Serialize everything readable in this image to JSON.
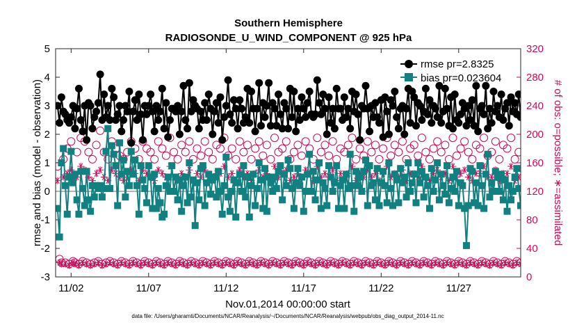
{
  "chart_data": {
    "type": "line",
    "title": "Southern Hemisphere",
    "subtitle": "RADIOSONDE_U_WIND_COMPONENT @ 925 hPa",
    "xlabel": "Nov.01,2014 00:00:00 start",
    "ylabel": "rmse and bias (model - observation)",
    "ylabel_right": "# of obs: o=possible; ∗=assimilated",
    "footnote": "data file: /Users/gharamti/Documents/NCAR/Reanalysis/~/Documents/NCAR/Reanalysis/webpub/obs_diag_output_2014-11.nc",
    "xlim": [
      0,
      60
    ],
    "ylim": [
      -3,
      5
    ],
    "ylim_right": [
      0,
      320
    ],
    "x_ticks": [
      {
        "x": 2,
        "label": "11/02"
      },
      {
        "x": 12,
        "label": "11/07"
      },
      {
        "x": 22,
        "label": "11/12"
      },
      {
        "x": 32,
        "label": "11/17"
      },
      {
        "x": 42,
        "label": "11/22"
      },
      {
        "x": 52,
        "label": "11/27"
      }
    ],
    "y_ticks": [
      -3,
      -2,
      -1,
      0,
      1,
      2,
      3,
      4,
      5
    ],
    "y_ticks_right": [
      0,
      40,
      80,
      120,
      160,
      200,
      240,
      280,
      320
    ],
    "legend": [
      {
        "label": "rmse pr=2.8325",
        "color": "#000000"
      },
      {
        "label": "bias pr=0.023604",
        "color": "#118080"
      }
    ],
    "colors": {
      "rmse": "#000000",
      "bias": "#118080",
      "obs": "#d1085a",
      "zero_line": "#b3b3b3"
    },
    "x": [
      0.25,
      0.5,
      0.75,
      1.0,
      1.25,
      1.5,
      1.75,
      2.0,
      2.25,
      2.5,
      2.75,
      3.0,
      3.25,
      3.5,
      3.75,
      4.0,
      4.25,
      4.5,
      4.75,
      5.0,
      5.25,
      5.5,
      5.75,
      6.0,
      6.25,
      6.5,
      6.75,
      7.0,
      7.25,
      7.5,
      7.75,
      8.0,
      8.25,
      8.5,
      8.75,
      9.0,
      9.25,
      9.5,
      9.75,
      10.0,
      10.25,
      10.5,
      10.75,
      11.0,
      11.25,
      11.5,
      11.75,
      12.0,
      12.25,
      12.5,
      12.75,
      13.0,
      13.25,
      13.5,
      13.75,
      14.0,
      14.25,
      14.5,
      14.75,
      15.0,
      15.25,
      15.5,
      15.75,
      16.0,
      16.25,
      16.5,
      16.75,
      17.0,
      17.25,
      17.5,
      17.75,
      18.0,
      18.25,
      18.5,
      18.75,
      19.0,
      19.25,
      19.5,
      19.75,
      20.0,
      20.25,
      20.5,
      20.75,
      21.0,
      21.25,
      21.5,
      21.75,
      22.0,
      22.25,
      22.5,
      22.75,
      23.0,
      23.25,
      23.5,
      23.75,
      24.0,
      24.25,
      24.5,
      24.75,
      25.0,
      25.25,
      25.5,
      25.75,
      26.0,
      26.25,
      26.5,
      26.75,
      27.0,
      27.25,
      27.5,
      27.75,
      28.0,
      28.25,
      28.5,
      28.75,
      29.0,
      29.25,
      29.5,
      29.75,
      30.0,
      30.25,
      30.5,
      30.75,
      31.0,
      31.25,
      31.5,
      31.75,
      32.0,
      32.25,
      32.5,
      32.75,
      33.0,
      33.25,
      33.5,
      33.75,
      34.0,
      34.25,
      34.5,
      34.75,
      35.0,
      35.25,
      35.5,
      35.75,
      36.0,
      36.25,
      36.5,
      36.75,
      37.0,
      37.25,
      37.5,
      37.75,
      38.0,
      38.25,
      38.5,
      38.75,
      39.0,
      39.25,
      39.5,
      39.75,
      40.0,
      40.25,
      40.5,
      40.75,
      41.0,
      41.25,
      41.5,
      41.75,
      42.0,
      42.25,
      42.5,
      42.75,
      43.0,
      43.25,
      43.5,
      43.75,
      44.0,
      44.25,
      44.5,
      44.75,
      45.0,
      45.25,
      45.5,
      45.75,
      46.0,
      46.25,
      46.5,
      46.75,
      47.0,
      47.25,
      47.5,
      47.75,
      48.0,
      48.25,
      48.5,
      48.75,
      49.0,
      49.25,
      49.5,
      49.75,
      50.0,
      50.25,
      50.5,
      50.75,
      51.0,
      51.25,
      51.5,
      51.75,
      52.0,
      52.25,
      52.5,
      52.75,
      53.0,
      53.25,
      53.5,
      53.75,
      54.0,
      54.25,
      54.5,
      54.75,
      55.0,
      55.25,
      55.5,
      55.75,
      56.0,
      56.25,
      56.5,
      56.75,
      57.0,
      57.25,
      57.5,
      57.75,
      58.0,
      58.25,
      58.5,
      58.75,
      59.0,
      59.25,
      59.5,
      59.75,
      60.0
    ],
    "rmse": [
      3.0,
      2.4,
      3.3,
      2.8,
      2.7,
      2.5,
      2.4,
      2.6,
      3.0,
      2.2,
      2.9,
      3.6,
      2.5,
      2.1,
      3.0,
      1.8,
      3.1,
      3.0,
      2.2,
      2.6,
      2.8,
      3.1,
      4.1,
      2.5,
      3.4,
      2.6,
      3.0,
      2.5,
      3.6,
      3.3,
      2.5,
      2.7,
      3.0,
      2.1,
      2.5,
      3.0,
      2.8,
      3.5,
      1.7,
      2.8,
      3.2,
      2.5,
      3.4,
      2.7,
      1.8,
      3.0,
      2.7,
      3.0,
      3.4,
      2.8,
      2.1,
      3.0,
      2.5,
      2.8,
      3.6,
      2.2,
      3.1,
      1.9,
      2.5,
      2.9,
      2.9,
      2.8,
      3.0,
      2.0,
      2.8,
      3.7,
      2.5,
      2.2,
      3.8,
      2.8,
      3.2,
      3.0,
      2.9,
      2.2,
      2.8,
      2.5,
      3.1,
      2.5,
      3.4,
      2.9,
      2.0,
      2.8,
      3.1,
      2.4,
      3.3,
      1.8,
      2.6,
      3.0,
      3.9,
      2.7,
      2.4,
      3.2,
      2.9,
      2.2,
      3.2,
      2.9,
      2.4,
      2.6,
      3.6,
      2.4,
      3.5,
      2.9,
      2.1,
      2.9,
      3.8,
      2.3,
      3.1,
      2.6,
      3.0,
      3.8,
      2.3,
      3.1,
      2.9,
      2.3,
      3.4,
      2.7,
      2.2,
      3.1,
      2.9,
      2.2,
      3.6,
      2.6,
      3.5,
      2.1,
      2.9,
      2.5,
      3.3,
      2.9,
      2.6,
      3.1,
      3.5,
      2.7,
      2.6,
      2.7,
      3.9,
      3.1,
      2.7,
      3.4,
      2.9,
      2.0,
      3.3,
      2.4,
      2.9,
      2.2,
      3.6,
      2.9,
      2.9,
      2.5,
      3.3,
      2.6,
      2.9,
      2.2,
      3.5,
      2.8,
      3.4,
      2.7,
      1.8,
      3.0,
      2.9,
      3.7,
      2.9,
      2.1,
      3.0,
      2.6,
      3.1,
      2.6,
      2.4,
      3.2,
      1.9,
      3.3,
      2.8,
      2.0,
      3.2,
      3.0,
      3.5,
      2.6,
      2.2,
      2.9,
      3.0,
      2.0,
      2.9,
      3.6,
      2.4,
      3.5,
      3.3,
      2.3,
      3.1,
      3.0,
      2.5,
      2.8,
      3.6,
      2.7,
      3.2,
      2.4,
      3.0,
      2.9,
      2.6,
      3.7,
      2.4,
      2.8,
      3.6,
      2.9,
      2.3,
      3.3,
      2.2,
      3.4,
      2.5,
      2.4,
      2.7,
      3.1,
      2.9,
      2.3,
      3.0,
      2.5,
      3.2,
      2.3,
      3.7,
      2.1,
      2.9,
      3.0,
      2.7,
      3.7,
      2.2,
      2.9,
      2.4,
      3.5,
      2.8,
      3.0,
      2.6,
      3.4,
      2.5,
      2.9,
      3.1,
      2.3,
      3.3,
      2.8,
      3.1,
      2.7,
      3.4,
      2.6,
      3.0,
      3.6,
      2.9,
      2.5,
      3.3,
      3.7,
      2.9
    ],
    "bias": [
      -0.6,
      -1.6,
      1.0,
      1.5,
      0.2,
      -0.8,
      0.5,
      1.4,
      0.3,
      0.6,
      -0.3,
      -0.8,
      0.7,
      0.1,
      -0.5,
      0.7,
      -0.3,
      -0.7,
      0.2,
      -0.2,
      0.2,
      0.1,
      0.2,
      -0.2,
      0.1,
      1.4,
      2.2,
      0.1,
      1.6,
      1.3,
      0.9,
      -0.5,
      1.7,
      0.6,
      1.1,
      -0.2,
      0.7,
      0.2,
      1.4,
      0.6,
      1.1,
      0.2,
      -0.8,
      0.9,
      0.4,
      0.1,
      -0.4,
      0.9,
      0.5,
      -0.6,
      0.6,
      -0.6,
      0.1,
      -0.4,
      -0.9,
      -0.8,
      0.2,
      0.5,
      0.0,
      0.9,
      0.0,
      0.5,
      -0.3,
      0.4,
      -0.7,
      0.2,
      0.5,
      -0.4,
      1.0,
      -0.2,
      0.4,
      -1.2,
      0.3,
      -0.3,
      0.8,
      0.9,
      -0.5,
      0.3,
      0.6,
      -0.1,
      0.4,
      0.5,
      -0.2,
      0.7,
      0.0,
      -0.8,
      0.2,
      1.2,
      -0.2,
      -0.7,
      0.0,
      0.4,
      -0.9,
      0.3,
      0.6,
      0.0,
      0.9,
      -0.2,
      0.5,
      -0.9,
      0.2,
      0.6,
      -0.5,
      0.1,
      1.0,
      0.4,
      -0.6,
      0.8,
      -0.7,
      0.5,
      0.3,
      0.0,
      0.5,
      0.1,
      0.7,
      0.9,
      -0.3,
      0.6,
      0.2,
      1.1,
      0.8,
      0.1,
      -0.6,
      0.3,
      0.8,
      0.2,
      0.5,
      -0.7,
      0.0,
      0.6,
      1.3,
      0.0,
      0.7,
      -0.3,
      0.4,
      1.0,
      -0.6,
      0.3,
      0.1,
      -0.5,
      0.9,
      0.5,
      0.0,
      0.3,
      0.9,
      -0.6,
      0.2,
      0.4,
      -0.6,
      0.6,
      0.1,
      1.3,
      0.2,
      -0.7,
      0.7,
      0.2,
      0.5,
      0.0,
      0.7,
      1.1,
      -0.5,
      0.9,
      0.2,
      0.3,
      -0.3,
      0.8,
      -0.5,
      0.3,
      0.7,
      0.2,
      -0.4,
      1.0,
      0.1,
      -0.5,
      0.6,
      0.4,
      -0.4,
      0.8,
      0.3,
      0.5,
      -0.2,
      1.0,
      0.0,
      0.3,
      0.6,
      -0.4,
      1.0,
      0.3,
      0.7,
      -0.2,
      0.5,
      0.2,
      -0.6,
      0.8,
      0.0,
      0.4,
      1.0,
      -0.3,
      0.6,
      0.2,
      -0.1,
      0.9,
      -0.4,
      0.1,
      0.5,
      0.0,
      0.7,
      -0.5,
      0.3,
      0.2,
      -0.6,
      -1.9,
      -0.5,
      0.8,
      0.7,
      -0.4,
      0.3,
      -0.5,
      0.9,
      0.2,
      -0.6,
      0.6,
      1.3,
      -0.2,
      0.3,
      0.0,
      0.7,
      0.5,
      0.0,
      0.6,
      -0.3,
      0.4,
      -0.7,
      0.2,
      -0.3,
      0.0,
      0.5,
      0.8,
      0.1,
      -0.5,
      0.3,
      -0.6,
      0.4,
      -0.6
    ],
    "possible": [
      155,
      25,
      20,
      165,
      20,
      180,
      18,
      190,
      22,
      20,
      175,
      18,
      195,
      22,
      190,
      20,
      175,
      18,
      165,
      20,
      185,
      22,
      205,
      18,
      175,
      20,
      165,
      22,
      190,
      20,
      180,
      18,
      170,
      22,
      165,
      20,
      175,
      18,
      190,
      22,
      180,
      20,
      165,
      18,
      190,
      22,
      180,
      20,
      175,
      18,
      165,
      22,
      190,
      20,
      180,
      18,
      170,
      22,
      195,
      20,
      175,
      18,
      165,
      22,
      185,
      20,
      175,
      18,
      190,
      22,
      165,
      20,
      180,
      18,
      170,
      22,
      190,
      20,
      175,
      18,
      165,
      22,
      185,
      20,
      180,
      18,
      195,
      22,
      170,
      20,
      180,
      18,
      165,
      22,
      190,
      20,
      175,
      18,
      185,
      22,
      165,
      20,
      180,
      18,
      190,
      22,
      170,
      20,
      185,
      18,
      165,
      22,
      195,
      20,
      175,
      18,
      180,
      22,
      190,
      20,
      165,
      18,
      175,
      22,
      185,
      20,
      170,
      18,
      190,
      22,
      180,
      20,
      165,
      18,
      195,
      22,
      175,
      20,
      185,
      18,
      170,
      22,
      190,
      20,
      165,
      18,
      180,
      22,
      175,
      20,
      185,
      18,
      195,
      22,
      165,
      20,
      180,
      18,
      170,
      22,
      190,
      20,
      175,
      18,
      185,
      22,
      165,
      20,
      180,
      18,
      195,
      22,
      170,
      20,
      185,
      18,
      175,
      22,
      190,
      20,
      165,
      18,
      180,
      22,
      185,
      20,
      170,
      18,
      195,
      22,
      175,
      20,
      165,
      18,
      180,
      22,
      190,
      20,
      175,
      18,
      185,
      22,
      165,
      20,
      195,
      18,
      170,
      22,
      180,
      20,
      190,
      18,
      175,
      22,
      165,
      20,
      185,
      18,
      180,
      22,
      195,
      20,
      170,
      18,
      175,
      22,
      190,
      20,
      165,
      18,
      185,
      22,
      180,
      20,
      195,
      18,
      165,
      22,
      175,
      20,
      160,
      18,
      165,
      22,
      155,
      20,
      160,
      18,
      5
    ],
    "assimilated": [
      135,
      20,
      18,
      140,
      18,
      145,
      16,
      150,
      20,
      18,
      140,
      16,
      155,
      20,
      150,
      18,
      140,
      16,
      135,
      18,
      145,
      20,
      150,
      16,
      140,
      18,
      135,
      20,
      150,
      18,
      145,
      16,
      140,
      20,
      135,
      18,
      140,
      16,
      150,
      20,
      145,
      18,
      135,
      16,
      150,
      20,
      145,
      18,
      140,
      16,
      135,
      20,
      150,
      18,
      145,
      16,
      140,
      20,
      155,
      18,
      140,
      16,
      135,
      20,
      145,
      18,
      140,
      16,
      150,
      20,
      135,
      18,
      145,
      16,
      140,
      20,
      150,
      18,
      140,
      16,
      135,
      20,
      145,
      18,
      145,
      16,
      155,
      20,
      140,
      18,
      145,
      16,
      135,
      20,
      150,
      18,
      140,
      16,
      145,
      20,
      135,
      18,
      145,
      16,
      150,
      20,
      140,
      18,
      145,
      16,
      135,
      20,
      155,
      18,
      140,
      16,
      145,
      20,
      150,
      18,
      135,
      16,
      140,
      20,
      145,
      18,
      140,
      16,
      150,
      20,
      145,
      18,
      135,
      16,
      155,
      20,
      140,
      18,
      145,
      16,
      140,
      20,
      150,
      18,
      135,
      16,
      145,
      20,
      140,
      18,
      145,
      16,
      155,
      20,
      135,
      18,
      145,
      16,
      140,
      20,
      150,
      18,
      140,
      16,
      145,
      20,
      135,
      18,
      145,
      16,
      155,
      20,
      140,
      18,
      145,
      16,
      140,
      20,
      150,
      18,
      135,
      16,
      145,
      20,
      145,
      18,
      140,
      16,
      155,
      20,
      140,
      18,
      135,
      16,
      145,
      20,
      150,
      18,
      140,
      16,
      145,
      20,
      135,
      18,
      155,
      16,
      140,
      20,
      145,
      18,
      150,
      16,
      140,
      20,
      135,
      18,
      145,
      16,
      145,
      20,
      155,
      18,
      140,
      16,
      140,
      20,
      150,
      18,
      135,
      16,
      145,
      20,
      145,
      18,
      155,
      16,
      135,
      20,
      140,
      18,
      130,
      16,
      135,
      20,
      125,
      18,
      130,
      16,
      3
    ]
  }
}
